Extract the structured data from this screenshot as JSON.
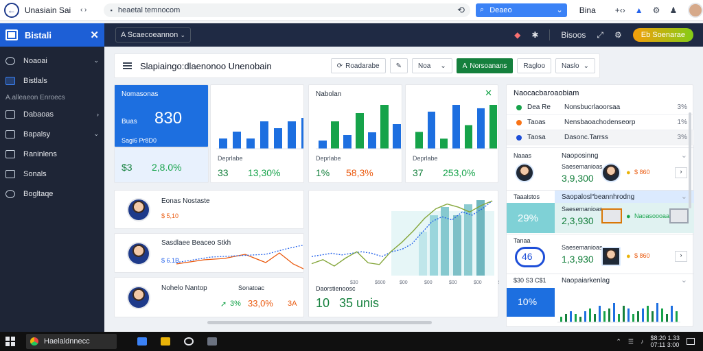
{
  "browser": {
    "tab_title": "Unasiain Sai",
    "nav_arrows": "‹ ›",
    "url": "heaetal temnocom",
    "search_label": "Deaeo",
    "bing": "Bina",
    "icon_text": "+‹›"
  },
  "sidebar": {
    "brand": "Bistali",
    "items": [
      {
        "label": "Noaoai",
        "icon": "home-icon",
        "arrow": "⌄"
      },
      {
        "label": "Bistlals",
        "icon": "grid-icon"
      },
      {
        "label": "Dabaoas",
        "icon": "database-icon",
        "arrow": "›"
      },
      {
        "label": "Bapalsy",
        "icon": "chart-icon",
        "arrow": "⌄"
      },
      {
        "label": "Raninlens",
        "icon": "layers-icon"
      },
      {
        "label": "Sonals",
        "icon": "chat-icon"
      },
      {
        "label": "Bogltaqe",
        "icon": "help-icon"
      }
    ],
    "section": "A.alleaeon Enroecs"
  },
  "topbar": {
    "select": "A Scaecoeannon",
    "notification": "",
    "user": "Bisoos",
    "cta": "Eb Soenarae"
  },
  "toolbar": {
    "title": "Slapiaingo:dlaenonoo Unenobain",
    "btn1": "Roadarabe",
    "btn2": "Noa",
    "btn3": "Norsoanans",
    "btn4": "Ragloo",
    "btn5": "Naslo"
  },
  "kpi": {
    "blue": {
      "title": "Nomasonas",
      "sub": "Buas",
      "value": "830",
      "note": "Sagi6 Pr8D0",
      "left": "$3",
      "right": "2,8.0%"
    },
    "c2": {
      "left_title": "Deprlabe",
      "a": "33",
      "b": "13,30%"
    },
    "c3": {
      "title": "Nabolan",
      "left_title": "Deprlabe",
      "a": "1%",
      "b": "58,3%"
    },
    "c4": {
      "left_title": "Deprlabe",
      "a": "37",
      "b": "253,0%"
    }
  },
  "people": [
    {
      "name": "Eonas Nostaste",
      "value": "$ 5,10"
    },
    {
      "name": "Sasdlaee Beaceo Stkh",
      "value": "$ 6.1B"
    },
    {
      "name": "Nohelo Nantop",
      "value": "33,0%",
      "tag": "Sonatoac",
      "pct": "3%",
      "sfx": "3A"
    }
  ],
  "bigchart": {
    "ticks": [
      "$30",
      "$600",
      "$00",
      "$00",
      "$00",
      "$00",
      "$00"
    ],
    "label": "Daorstienoosc",
    "a": "10",
    "b": "35 unis"
  },
  "chart_data": [
    {
      "type": "bar",
      "values": [
        3,
        5,
        3,
        8,
        6,
        8,
        9
      ]
    },
    {
      "type": "bar",
      "values": [
        3,
        10,
        5,
        13,
        6,
        16,
        9
      ]
    },
    {
      "type": "bar",
      "values": [
        5,
        11,
        3,
        13,
        7,
        12,
        13
      ]
    },
    {
      "type": "line",
      "series": [
        {
          "values": [
            24,
            26,
            28,
            26,
            28,
            30,
            28,
            24,
            30,
            33,
            40,
            54,
            68,
            74,
            70,
            80,
            76,
            84,
            94
          ]
        },
        {
          "values": [
            15,
            20,
            12,
            22,
            30,
            16,
            14,
            30,
            42,
            56,
            72,
            84,
            90,
            86,
            80,
            88,
            94
          ]
        }
      ]
    },
    {
      "type": "bar",
      "values": [
        2,
        3,
        4,
        3,
        2,
        4,
        5,
        3,
        6,
        4,
        5,
        7,
        3,
        6,
        5,
        3,
        4,
        5,
        6,
        4,
        7,
        5,
        3,
        6,
        4
      ]
    }
  ],
  "right_panel": {
    "header": "Naocacbaroaobiam",
    "rows": [
      {
        "color": "#16a34a",
        "name": "Dea Re",
        "desc": "Nonsbucrlaoorsaa",
        "pct": "3%"
      },
      {
        "color": "#f97316",
        "name": "Taoas",
        "desc": "Nensbaoachodenseorp",
        "pct": "1%"
      },
      {
        "color": "#1d4ed8",
        "name": "Taosa",
        "desc": "Dasonc.Tarrss",
        "pct": "3%"
      }
    ],
    "p1": {
      "title": "Naaas",
      "head": "Naoposinng",
      "sub": "Saesemanioas",
      "value": "3,9,300",
      "badge": "$ 860"
    },
    "p2": {
      "title": "Taaalstos",
      "head": "Saopalosl“beannhrodng",
      "value": "29%",
      "sub": "Saesemanioas",
      "amount": "2,3,930",
      "badge": "Naoasoooaa"
    },
    "p3": {
      "title": "Tanaa",
      "value": "46",
      "sub": "Saesemanioas",
      "amount": "1,3,930",
      "badge": "$ 860"
    },
    "p4": {
      "title": "$30 S3 C$1",
      "head": "Naopaiarkenlag",
      "value": "10%"
    }
  },
  "taskbar": {
    "app": "Haelaldnnecc",
    "time": "$8:20 1.33",
    "date": "07:11 3:00"
  }
}
